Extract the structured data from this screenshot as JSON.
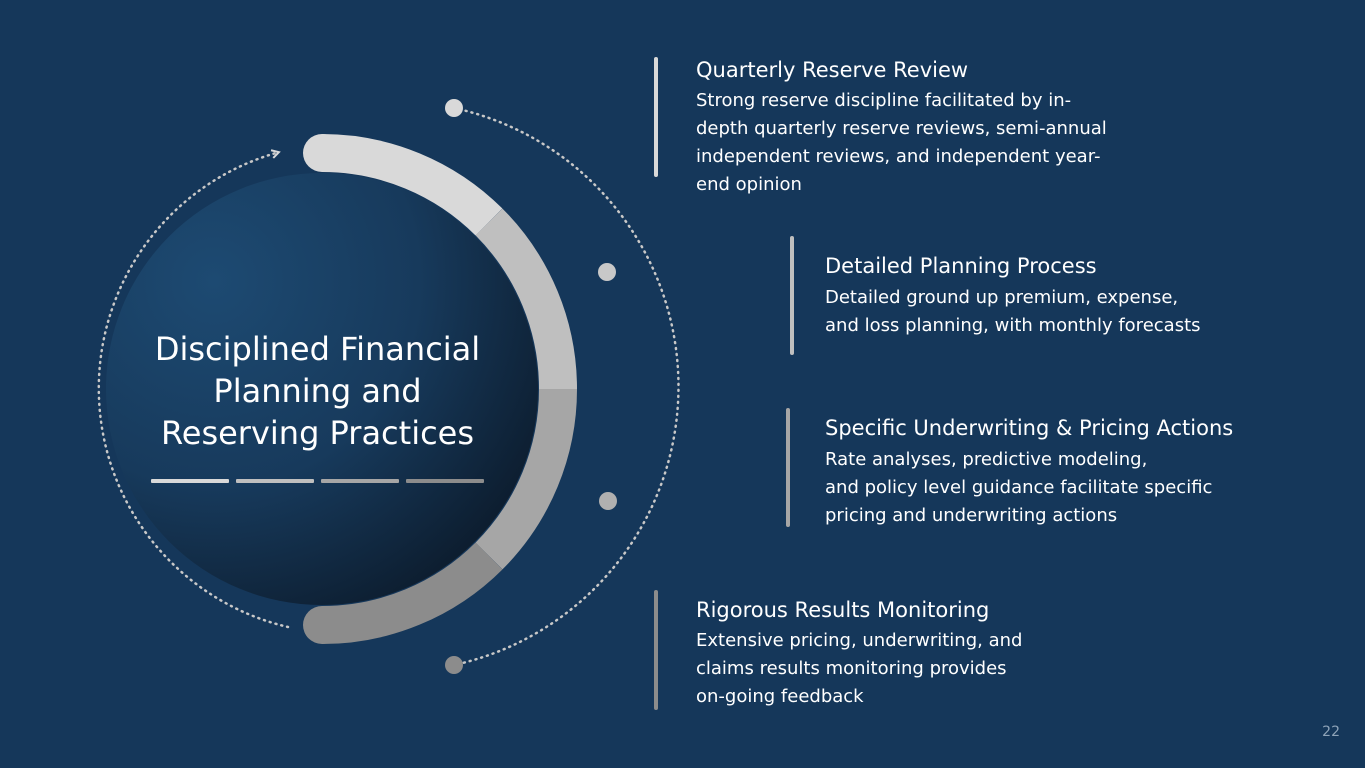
{
  "slide": {
    "center_title_lines": [
      "Disciplined Financial",
      "Planning and",
      "Reserving Practices"
    ],
    "page_number": "22"
  },
  "items": [
    {
      "title": "Quarterly Reserve Review",
      "desc_lines": [
        "Strong reserve discipline facilitated by in-",
        "depth quarterly reserve reviews, semi-annual",
        "independent reviews, and independent year-",
        "end opinion"
      ]
    },
    {
      "title": "Detailed Planning Process",
      "desc_lines": [
        "Detailed ground up premium, expense,",
        "and loss planning, with monthly forecasts"
      ]
    },
    {
      "title": "Specific Underwriting & Pricing Actions",
      "desc_lines": [
        "Rate analyses, predictive modeling,",
        "and policy level guidance facilitate specific",
        "pricing and underwriting actions"
      ]
    },
    {
      "title": "Rigorous Results Monitoring",
      "desc_lines": [
        "Extensive pricing, underwriting, and",
        "claims results monitoring provides",
        "on-going feedback"
      ]
    }
  ],
  "colors": {
    "background": "#15375a",
    "segment_1": "#d9d9d9",
    "segment_2": "#bfbfbf",
    "segment_3": "#a6a6a6",
    "segment_4": "#8c8c8c",
    "text": "#ffffff",
    "page_number": "#8ea3b8"
  }
}
